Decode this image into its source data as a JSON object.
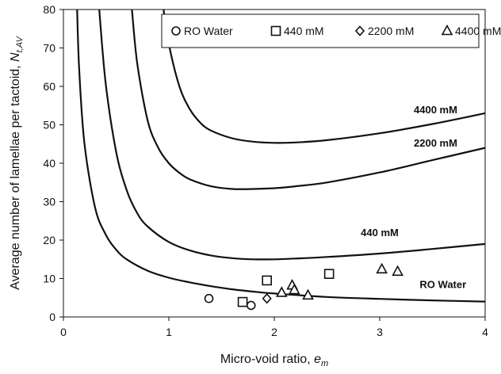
{
  "chart_data": {
    "type": "scatter",
    "xlabel_main": "Micro-void ratio, ",
    "xlabel_sub": "m",
    "xlabel_var": "e",
    "ylabel_main": "Average number of lamellae per tactoid, ",
    "ylabel_var": "N",
    "ylabel_sub": "t,AV",
    "xlim": [
      0,
      4
    ],
    "ylim": [
      0,
      80
    ],
    "xticks": [
      "0",
      "1",
      "2",
      "3",
      "4"
    ],
    "yticks": [
      "0",
      "10",
      "20",
      "30",
      "40",
      "50",
      "60",
      "70",
      "80"
    ],
    "grid": false,
    "legend_position": "top-right",
    "legend": [
      {
        "marker": "circle",
        "label": "RO Water"
      },
      {
        "marker": "square",
        "label": "440 mM"
      },
      {
        "marker": "diamond",
        "label": "2200 mM"
      },
      {
        "marker": "triangle",
        "label": "4400 mM"
      }
    ],
    "series": [
      {
        "name": "RO Water",
        "marker": "circle",
        "points": [
          [
            1.38,
            4.8
          ],
          [
            1.78,
            3.0
          ]
        ]
      },
      {
        "name": "440 mM",
        "marker": "square",
        "points": [
          [
            1.7,
            3.9
          ],
          [
            1.93,
            9.5
          ],
          [
            2.52,
            11.2
          ]
        ]
      },
      {
        "name": "2200 mM",
        "marker": "diamond",
        "points": [
          [
            1.93,
            4.8
          ]
        ]
      },
      {
        "name": "4400 mM",
        "marker": "triangle",
        "points": [
          [
            2.07,
            6.3
          ],
          [
            2.17,
            8.2
          ],
          [
            2.19,
            7.0
          ],
          [
            2.32,
            5.6
          ],
          [
            3.02,
            12.4
          ],
          [
            3.17,
            11.8
          ]
        ]
      }
    ],
    "curves": [
      {
        "label": "RO Water",
        "points": [
          [
            0.13,
            80
          ],
          [
            0.15,
            64
          ],
          [
            0.2,
            45
          ],
          [
            0.3,
            28.5
          ],
          [
            0.4,
            21.5
          ],
          [
            0.5,
            17.5
          ],
          [
            0.6,
            15
          ],
          [
            0.8,
            12
          ],
          [
            1.0,
            10.2
          ],
          [
            1.2,
            9
          ],
          [
            1.4,
            8
          ],
          [
            1.6,
            7.2
          ],
          [
            1.8,
            6.6
          ],
          [
            2.0,
            6.1
          ],
          [
            2.5,
            5.2
          ],
          [
            3.0,
            4.7
          ],
          [
            3.5,
            4.3
          ],
          [
            4.0,
            4.0
          ]
        ]
      },
      {
        "label": "440 mM",
        "points": [
          [
            0.34,
            80
          ],
          [
            0.4,
            61
          ],
          [
            0.5,
            43
          ],
          [
            0.6,
            33
          ],
          [
            0.7,
            27
          ],
          [
            0.8,
            23.5
          ],
          [
            1.0,
            19.5
          ],
          [
            1.2,
            17.3
          ],
          [
            1.4,
            16
          ],
          [
            1.6,
            15.3
          ],
          [
            1.8,
            15
          ],
          [
            2.0,
            15
          ],
          [
            2.2,
            15.2
          ],
          [
            2.5,
            15.6
          ],
          [
            3.0,
            16.5
          ],
          [
            3.5,
            17.7
          ],
          [
            4.0,
            19
          ]
        ]
      },
      {
        "label": "2200 mM",
        "points": [
          [
            0.65,
            80
          ],
          [
            0.7,
            66
          ],
          [
            0.8,
            51
          ],
          [
            0.9,
            44
          ],
          [
            1.0,
            40
          ],
          [
            1.1,
            37.5
          ],
          [
            1.2,
            35.8
          ],
          [
            1.4,
            34
          ],
          [
            1.6,
            33.3
          ],
          [
            1.8,
            33.3
          ],
          [
            2.0,
            33.5
          ],
          [
            2.2,
            34
          ],
          [
            2.5,
            35
          ],
          [
            3.0,
            37.6
          ],
          [
            3.5,
            40.8
          ],
          [
            4.0,
            44
          ]
        ]
      },
      {
        "label": "4400 mM",
        "points": [
          [
            0.95,
            80
          ],
          [
            1.0,
            71
          ],
          [
            1.1,
            60
          ],
          [
            1.2,
            54
          ],
          [
            1.3,
            50.5
          ],
          [
            1.4,
            48.5
          ],
          [
            1.6,
            46.5
          ],
          [
            1.8,
            45.6
          ],
          [
            2.0,
            45.3
          ],
          [
            2.2,
            45.4
          ],
          [
            2.5,
            46
          ],
          [
            3.0,
            47.8
          ],
          [
            3.5,
            50.2
          ],
          [
            4.0,
            53
          ]
        ]
      }
    ],
    "curve_labels": [
      {
        "text": "4400 mM",
        "x": 3.53,
        "y": 53
      },
      {
        "text": "2200 mM",
        "x": 3.53,
        "y": 44.3
      },
      {
        "text": "440 mM",
        "x": 3.0,
        "y": 21
      },
      {
        "text": "RO Water",
        "x": 3.6,
        "y": 7.5
      }
    ]
  }
}
